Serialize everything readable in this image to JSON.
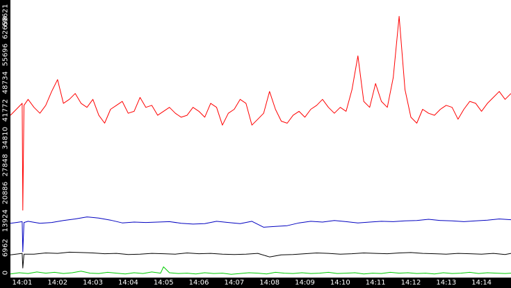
{
  "chart_data": {
    "type": "line",
    "y_ticks": [
      "0",
      "6962",
      "13924",
      "20886",
      "27848",
      "34810",
      "41772",
      "48734",
      "55696",
      "62658",
      "69621"
    ],
    "x_ticks": [
      "14:01",
      "14:02",
      "14:03",
      "14:04",
      "14:05",
      "14:06",
      "14:07",
      "14:08",
      "14:09",
      "14:10",
      "14:11",
      "14:12",
      "14:13",
      "14:14"
    ],
    "ylim": [
      0,
      69621
    ],
    "xlim": [
      "14:00:40",
      "14:14:50"
    ],
    "grid": false,
    "background": "#ffffff",
    "axis_band_color": "#000000",
    "series": [
      {
        "color": "#ff0000",
        "x": [
          "14:00:40",
          "14:00:50",
          "14:01:00",
          "14:01:01",
          "14:01:03",
          "14:01:10",
          "14:01:20",
          "14:01:30",
          "14:01:40",
          "14:01:50",
          "14:02:00",
          "14:02:10",
          "14:02:20",
          "14:02:30",
          "14:02:40",
          "14:02:50",
          "14:03:00",
          "14:03:10",
          "14:03:20",
          "14:03:30",
          "14:03:40",
          "14:03:50",
          "14:04:00",
          "14:04:10",
          "14:04:20",
          "14:04:30",
          "14:04:40",
          "14:04:50",
          "14:05:00",
          "14:05:10",
          "14:05:20",
          "14:05:30",
          "14:05:40",
          "14:05:50",
          "14:06:00",
          "14:06:10",
          "14:06:20",
          "14:06:30",
          "14:06:40",
          "14:06:50",
          "14:07:00",
          "14:07:10",
          "14:07:20",
          "14:07:30",
          "14:07:40",
          "14:07:50",
          "14:08:00",
          "14:08:10",
          "14:08:20",
          "14:08:30",
          "14:08:40",
          "14:08:50",
          "14:09:00",
          "14:09:10",
          "14:09:20",
          "14:09:30",
          "14:09:40",
          "14:09:50",
          "14:10:00",
          "14:10:10",
          "14:10:20",
          "14:10:30",
          "14:10:40",
          "14:10:50",
          "14:11:00",
          "14:11:10",
          "14:11:20",
          "14:11:30",
          "14:11:40",
          "14:11:50",
          "14:12:00",
          "14:12:10",
          "14:12:20",
          "14:12:30",
          "14:12:40",
          "14:12:50",
          "14:13:00",
          "14:13:10",
          "14:13:20",
          "14:13:30",
          "14:13:40",
          "14:13:50",
          "14:14:00",
          "14:14:10",
          "14:14:20",
          "14:14:30",
          "14:14:40",
          "14:14:50"
        ],
        "values": [
          40500,
          42000,
          43500,
          16500,
          43000,
          44500,
          42500,
          41000,
          43000,
          46500,
          49500,
          43500,
          44500,
          46000,
          43500,
          42500,
          44500,
          40500,
          38500,
          42000,
          43000,
          44000,
          41000,
          41500,
          45000,
          42500,
          43000,
          40500,
          41500,
          42500,
          41000,
          40000,
          40500,
          42500,
          41500,
          40000,
          43500,
          42500,
          38000,
          41000,
          42000,
          44500,
          43500,
          38000,
          39500,
          41000,
          46500,
          42000,
          39000,
          38500,
          40500,
          41500,
          40000,
          42000,
          43000,
          44500,
          42500,
          41000,
          42500,
          41500,
          47000,
          55500,
          44000,
          42500,
          48500,
          44000,
          42500,
          50000,
          65500,
          47000,
          40000,
          38500,
          42000,
          41000,
          40500,
          42000,
          43000,
          42500,
          39500,
          42000,
          44000,
          43500,
          41500,
          43500,
          45000,
          46500,
          44500,
          46000
        ]
      },
      {
        "color": "#0000c0",
        "x": [
          "14:00:40",
          "14:00:50",
          "14:01:00",
          "14:01:01",
          "14:01:03",
          "14:01:10",
          "14:01:30",
          "14:01:50",
          "14:02:10",
          "14:02:30",
          "14:02:50",
          "14:03:10",
          "14:03:30",
          "14:03:50",
          "14:04:10",
          "14:04:30",
          "14:04:50",
          "14:05:10",
          "14:05:30",
          "14:05:50",
          "14:06:10",
          "14:06:30",
          "14:06:50",
          "14:07:10",
          "14:07:30",
          "14:07:50",
          "14:08:10",
          "14:08:30",
          "14:08:50",
          "14:09:10",
          "14:09:30",
          "14:09:50",
          "14:10:10",
          "14:10:30",
          "14:10:50",
          "14:11:10",
          "14:11:30",
          "14:11:50",
          "14:12:10",
          "14:12:30",
          "14:12:50",
          "14:13:10",
          "14:13:30",
          "14:13:50",
          "14:14:10",
          "14:14:30",
          "14:14:50"
        ],
        "values": [
          13200,
          13400,
          13600,
          6000,
          13400,
          13700,
          13200,
          13400,
          13900,
          14300,
          14800,
          14500,
          14000,
          13300,
          13500,
          13400,
          13500,
          13600,
          13200,
          13000,
          13100,
          13700,
          13400,
          13100,
          13700,
          12200,
          12400,
          12600,
          13300,
          13700,
          13500,
          13900,
          13600,
          13300,
          13500,
          13700,
          13600,
          13800,
          13900,
          14200,
          13900,
          13800,
          13600,
          13800,
          14000,
          14300,
          14100
        ]
      },
      {
        "color": "#000000",
        "x": [
          "14:00:40",
          "14:01:00",
          "14:01:01",
          "14:01:03",
          "14:01:20",
          "14:01:40",
          "14:02:00",
          "14:02:20",
          "14:02:40",
          "14:03:00",
          "14:03:20",
          "14:03:40",
          "14:04:00",
          "14:04:20",
          "14:04:40",
          "14:05:00",
          "14:05:20",
          "14:05:40",
          "14:06:00",
          "14:06:20",
          "14:06:40",
          "14:07:00",
          "14:07:20",
          "14:07:40",
          "14:08:00",
          "14:08:20",
          "14:08:40",
          "14:09:00",
          "14:09:20",
          "14:09:40",
          "14:10:00",
          "14:10:20",
          "14:10:40",
          "14:11:00",
          "14:11:20",
          "14:11:40",
          "14:12:00",
          "14:12:20",
          "14:12:40",
          "14:13:00",
          "14:13:20",
          "14:13:40",
          "14:14:00",
          "14:14:20",
          "14:14:40",
          "14:14:50"
        ],
        "values": [
          5200,
          5600,
          1900,
          5400,
          5400,
          5700,
          5600,
          5900,
          5800,
          5700,
          5500,
          5600,
          5300,
          5400,
          5600,
          5500,
          5400,
          5700,
          5500,
          5600,
          5400,
          5300,
          5400,
          5600,
          4700,
          5200,
          5300,
          5500,
          5700,
          5600,
          5400,
          5500,
          5700,
          5600,
          5500,
          5700,
          5800,
          5600,
          5500,
          5400,
          5600,
          5500,
          5400,
          5600,
          5300,
          5600
        ]
      },
      {
        "color": "#00cc00",
        "x": [
          "14:00:40",
          "14:00:55",
          "14:01:10",
          "14:01:25",
          "14:01:40",
          "14:01:55",
          "14:02:10",
          "14:02:25",
          "14:02:40",
          "14:02:55",
          "14:03:10",
          "14:03:25",
          "14:03:40",
          "14:03:55",
          "14:04:10",
          "14:04:25",
          "14:04:40",
          "14:04:55",
          "14:05:00",
          "14:05:10",
          "14:05:25",
          "14:05:40",
          "14:05:55",
          "14:06:10",
          "14:06:25",
          "14:06:40",
          "14:06:55",
          "14:07:10",
          "14:07:25",
          "14:07:40",
          "14:07:55",
          "14:08:10",
          "14:08:25",
          "14:08:40",
          "14:08:55",
          "14:09:10",
          "14:09:25",
          "14:09:40",
          "14:09:55",
          "14:10:10",
          "14:10:25",
          "14:10:40",
          "14:10:55",
          "14:11:10",
          "14:11:25",
          "14:11:40",
          "14:11:55",
          "14:12:10",
          "14:12:25",
          "14:12:40",
          "14:12:55",
          "14:13:10",
          "14:13:25",
          "14:13:40",
          "14:13:55",
          "14:14:10",
          "14:14:25",
          "14:14:40",
          "14:14:50"
        ],
        "values": [
          400,
          700,
          500,
          900,
          600,
          800,
          500,
          700,
          1100,
          600,
          500,
          800,
          600,
          400,
          700,
          500,
          900,
          600,
          2200,
          700,
          500,
          600,
          400,
          700,
          500,
          600,
          300,
          500,
          700,
          600,
          400,
          800,
          600,
          500,
          700,
          500,
          600,
          800,
          500,
          600,
          700,
          400,
          600,
          500,
          800,
          600,
          700,
          500,
          600,
          400,
          700,
          500,
          600,
          800,
          500,
          700,
          600,
          500,
          600
        ]
      }
    ]
  }
}
